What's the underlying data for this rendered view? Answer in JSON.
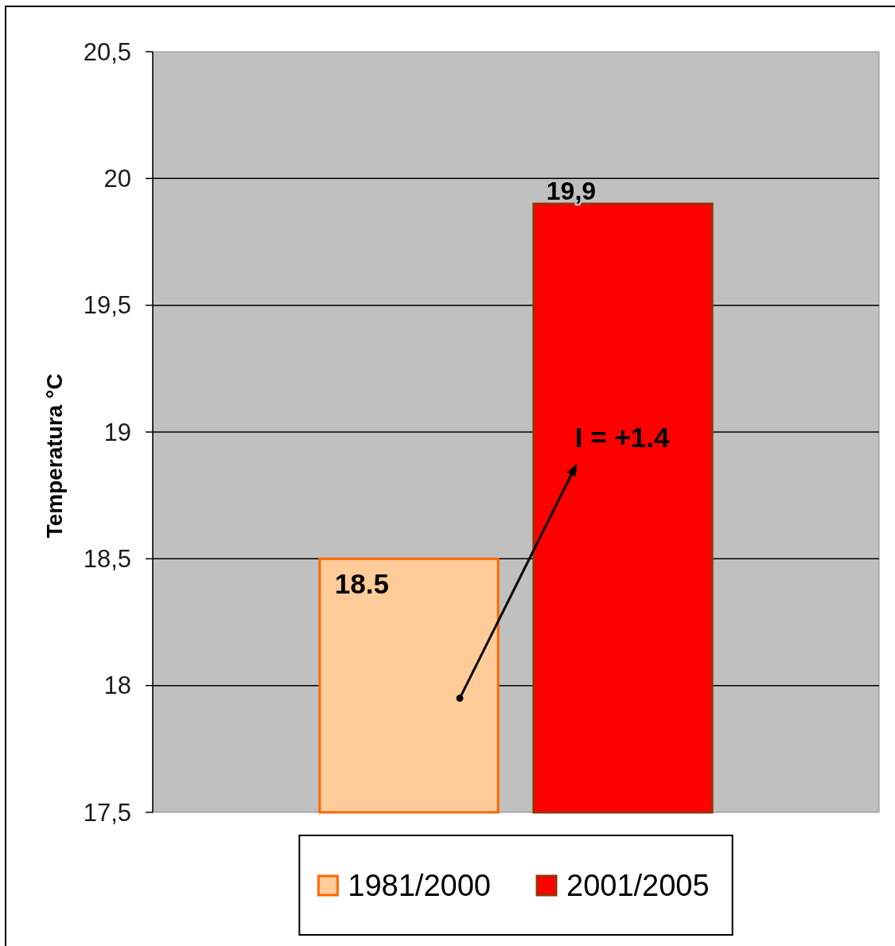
{
  "chart_data": {
    "type": "bar",
    "ylabel": "Temperatura °C",
    "categories": [
      null
    ],
    "series": [
      {
        "name": "1981/2000",
        "color": "#ffcc99",
        "values": [
          18.5
        ],
        "value_labels": [
          "18.5"
        ]
      },
      {
        "name": "2001/2005",
        "color": "#ff0000",
        "values": [
          19.9
        ],
        "value_labels": [
          "19,9"
        ]
      }
    ],
    "ylim": [
      17.5,
      20.5
    ],
    "yticks": [
      {
        "value": 17.5,
        "label": "17,5"
      },
      18,
      {
        "value": 18.5,
        "label": "18,5"
      },
      19,
      {
        "value": 19.5,
        "label": "19,5"
      },
      20,
      {
        "value": 20.5,
        "label": "20,5"
      }
    ],
    "grid": "y",
    "legend": "bottom",
    "annotations": [
      "I = +1.4"
    ]
  }
}
